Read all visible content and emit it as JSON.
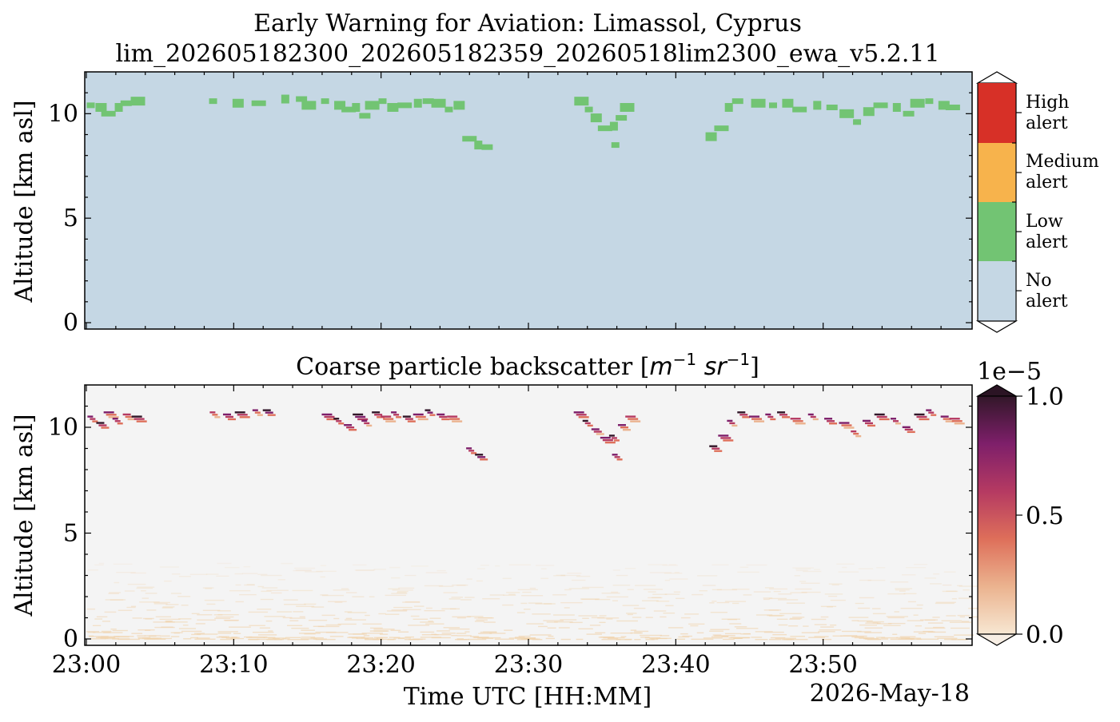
{
  "figure": {
    "title_line1": "Early Warning for Aviation: Limassol, Cyprus",
    "title_line2": "lim_202605182300_202605182359_20260518lim2300_ewa_v5.2.11",
    "date_label": "2026-May-18"
  },
  "chart_data": [
    {
      "type": "heatmap",
      "panel": "alert",
      "title": "",
      "xlabel": "",
      "ylabel": "Altitude [km asl]",
      "xlim": [
        "23:00",
        "23:59"
      ],
      "ylim": [
        0,
        12
      ],
      "y_ticks": [
        "0",
        "5",
        "10"
      ],
      "background_class": "No alert",
      "colorbar": {
        "categories": [
          {
            "label_line1": "High",
            "label_line2": "alert",
            "color": "#d73027"
          },
          {
            "label_line1": "Medium",
            "label_line2": "alert",
            "color": "#f7b34c"
          },
          {
            "label_line1": "Low",
            "label_line2": "alert",
            "color": "#72c473"
          },
          {
            "label_line1": "No",
            "label_line2": "alert",
            "color": "#c5d7e4"
          }
        ]
      },
      "low_alert_cells": [
        [
          0.3,
          10.4
        ],
        [
          1.0,
          10.3
        ],
        [
          1.5,
          10.0
        ],
        [
          2.2,
          10.3
        ],
        [
          2.7,
          10.5
        ],
        [
          3.5,
          10.6
        ],
        [
          8.6,
          10.6
        ],
        [
          10.3,
          10.5
        ],
        [
          11.7,
          10.5
        ],
        [
          13.5,
          10.7
        ],
        [
          14.6,
          10.7
        ],
        [
          15.1,
          10.4
        ],
        [
          16.2,
          10.6
        ],
        [
          17.2,
          10.4
        ],
        [
          17.8,
          10.2
        ],
        [
          18.3,
          10.3
        ],
        [
          18.9,
          9.9
        ],
        [
          19.4,
          10.4
        ],
        [
          20.1,
          10.6
        ],
        [
          20.8,
          10.3
        ],
        [
          21.6,
          10.4
        ],
        [
          22.5,
          10.5
        ],
        [
          23.2,
          10.6
        ],
        [
          23.9,
          10.5
        ],
        [
          24.6,
          10.2
        ],
        [
          25.3,
          10.4
        ],
        [
          26.0,
          8.8
        ],
        [
          26.6,
          8.5
        ],
        [
          27.2,
          8.4
        ],
        [
          33.6,
          10.6
        ],
        [
          34.1,
          10.2
        ],
        [
          34.6,
          9.8
        ],
        [
          35.2,
          9.3
        ],
        [
          35.8,
          9.4
        ],
        [
          36.3,
          9.8
        ],
        [
          36.7,
          10.3
        ],
        [
          35.9,
          8.5
        ],
        [
          42.4,
          8.9
        ],
        [
          43.1,
          9.3
        ],
        [
          43.6,
          10.3
        ],
        [
          44.2,
          10.6
        ],
        [
          45.6,
          10.5
        ],
        [
          46.6,
          10.4
        ],
        [
          47.6,
          10.5
        ],
        [
          48.4,
          10.2
        ],
        [
          49.6,
          10.4
        ],
        [
          50.6,
          10.3
        ],
        [
          51.6,
          10.0
        ],
        [
          52.3,
          9.6
        ],
        [
          53.1,
          10.1
        ],
        [
          53.9,
          10.4
        ],
        [
          55.0,
          10.3
        ],
        [
          55.8,
          10.0
        ],
        [
          56.4,
          10.5
        ],
        [
          57.2,
          10.6
        ],
        [
          58.2,
          10.4
        ],
        [
          58.8,
          10.3
        ]
      ]
    },
    {
      "type": "heatmap",
      "panel": "backscatter",
      "title": "Coarse particle backscatter [m⁻¹ sr⁻¹]",
      "title_main": "Coarse particle backscatter [",
      "title_m": "m",
      "title_sup1": "−1",
      "title_sr": "sr",
      "title_sup2": "−1",
      "title_end": "]",
      "xlabel": "Time UTC [HH:MM]",
      "ylabel": "Altitude [km asl]",
      "xlim": [
        "23:00",
        "23:59"
      ],
      "ylim": [
        0,
        12
      ],
      "x_ticks": [
        "23:00",
        "23:10",
        "23:20",
        "23:30",
        "23:40",
        "23:50"
      ],
      "y_ticks": [
        "0",
        "5",
        "10"
      ],
      "colorbar": {
        "multiplier": "1e−5",
        "min": 0.0,
        "max": 1.0,
        "tick_labels": [
          "0.0",
          "0.5",
          "1.0"
        ],
        "colors": [
          "#f7e7d2",
          "#ebb38f",
          "#de6f5a",
          "#b53a62",
          "#7e1f6a",
          "#321729"
        ]
      },
      "cloud_cells": [
        [
          0.4,
          10.4,
          0.8
        ],
        [
          1.0,
          10.1,
          0.9
        ],
        [
          1.5,
          10.6,
          0.7
        ],
        [
          2.1,
          10.3,
          0.85
        ],
        [
          2.8,
          10.5,
          0.6
        ],
        [
          3.4,
          10.4,
          0.9
        ],
        [
          8.7,
          10.6,
          0.6
        ],
        [
          9.6,
          10.5,
          0.8
        ],
        [
          10.4,
          10.6,
          0.9
        ],
        [
          11.6,
          10.7,
          0.7
        ],
        [
          12.3,
          10.7,
          0.95
        ],
        [
          16.3,
          10.5,
          0.8
        ],
        [
          17.1,
          10.3,
          0.9
        ],
        [
          17.8,
          10.0,
          0.85
        ],
        [
          18.4,
          10.5,
          1.0
        ],
        [
          19.0,
          10.2,
          0.75
        ],
        [
          19.7,
          10.6,
          0.9
        ],
        [
          20.3,
          10.4,
          0.6
        ],
        [
          21.0,
          10.6,
          0.8
        ],
        [
          21.8,
          10.4,
          0.9
        ],
        [
          22.5,
          10.5,
          0.7
        ],
        [
          23.3,
          10.7,
          0.95
        ],
        [
          24.1,
          10.5,
          0.85
        ],
        [
          24.8,
          10.4,
          0.6
        ],
        [
          26.1,
          8.9,
          0.8
        ],
        [
          26.7,
          8.6,
          0.95
        ],
        [
          33.4,
          10.6,
          0.8
        ],
        [
          34.0,
          10.2,
          0.9
        ],
        [
          34.6,
          9.8,
          0.75
        ],
        [
          35.2,
          9.4,
          0.85
        ],
        [
          35.8,
          9.5,
          0.9
        ],
        [
          36.4,
          10.0,
          0.7
        ],
        [
          36.9,
          10.4,
          0.6
        ],
        [
          36.0,
          8.6,
          0.8
        ],
        [
          42.6,
          9.0,
          0.9
        ],
        [
          43.2,
          9.5,
          0.8
        ],
        [
          43.8,
          10.2,
          0.75
        ],
        [
          44.5,
          10.6,
          0.9
        ],
        [
          45.3,
          10.4,
          0.7
        ],
        [
          46.4,
          10.5,
          0.8
        ],
        [
          47.2,
          10.6,
          0.9
        ],
        [
          48.1,
          10.3,
          0.6
        ],
        [
          49.3,
          10.5,
          0.75
        ],
        [
          50.4,
          10.3,
          0.85
        ],
        [
          51.4,
          10.1,
          0.7
        ],
        [
          52.2,
          9.7,
          0.6
        ],
        [
          53.0,
          10.2,
          0.8
        ],
        [
          53.8,
          10.5,
          0.9
        ],
        [
          54.9,
          10.3,
          0.75
        ],
        [
          55.7,
          9.9,
          0.85
        ],
        [
          56.5,
          10.5,
          0.9
        ],
        [
          57.3,
          10.7,
          0.8
        ],
        [
          58.3,
          10.4,
          0.7
        ],
        [
          58.9,
          10.3,
          0.6
        ]
      ]
    }
  ]
}
